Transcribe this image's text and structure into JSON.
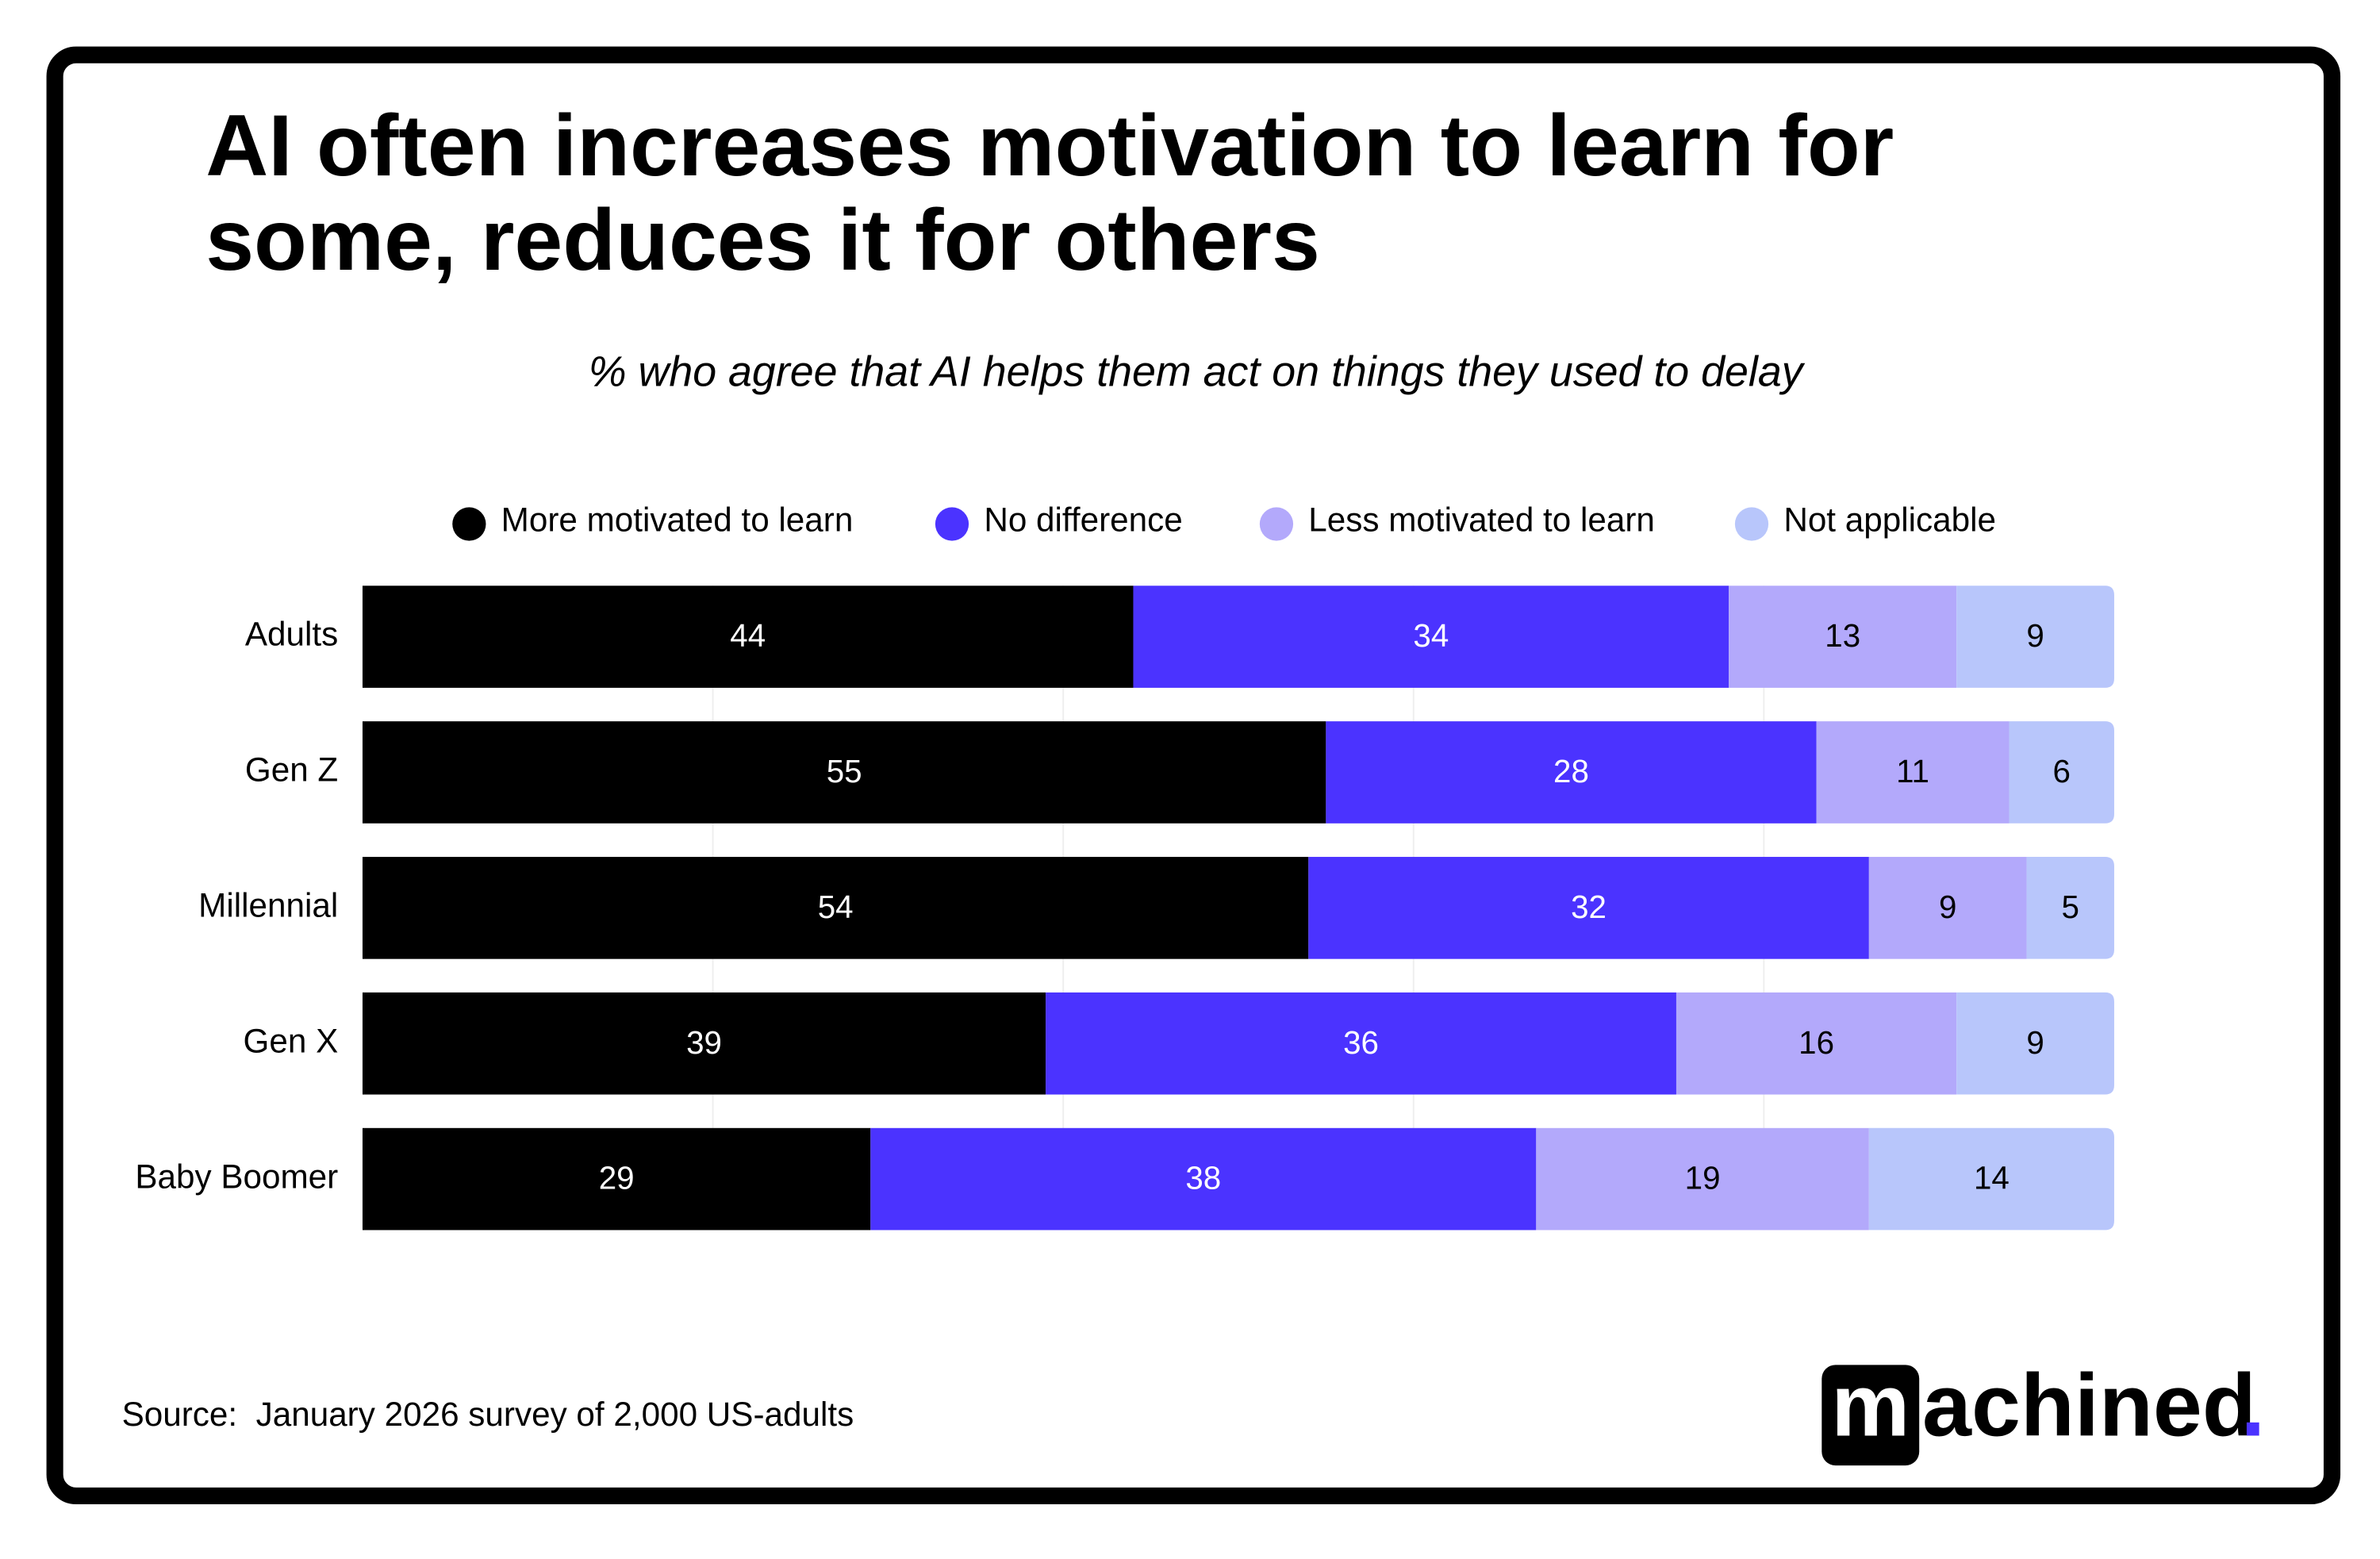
{
  "chart_data": {
    "type": "stacked-bar-horizontal",
    "title": [
      "AI often increases motivation to learn for",
      "some, reduces it for others"
    ],
    "subtitle": "% who agree that AI helps them act on things they used to delay",
    "categories": [
      "Adults",
      "Gen Z",
      "Millennial",
      "Gen X",
      "Baby Boomer"
    ],
    "series": [
      {
        "name": "More motivated to learn",
        "color": "#000000",
        "label_color": "#ffffff",
        "values": [
          44,
          55,
          54,
          39,
          29
        ]
      },
      {
        "name": "No difference",
        "color": "#4b33ff",
        "label_color": "#ffffff",
        "values": [
          34,
          28,
          32,
          36,
          38
        ]
      },
      {
        "name": "Less motivated to learn",
        "color": "#b3a9fb",
        "label_color": "#000000",
        "values": [
          13,
          11,
          9,
          16,
          19
        ]
      },
      {
        "name": "Not applicable",
        "color": "#b8c6fb",
        "label_color": "#000000",
        "values": [
          9,
          6,
          5,
          9,
          14
        ]
      }
    ],
    "xlim": [
      0,
      100
    ],
    "xticks": [
      20,
      40,
      60,
      80
    ],
    "grid": true,
    "legend": "top",
    "source": "Source:  January 2026 survey of 2,000 US-adults",
    "brand": [
      "m",
      "achined",
      "."
    ]
  }
}
